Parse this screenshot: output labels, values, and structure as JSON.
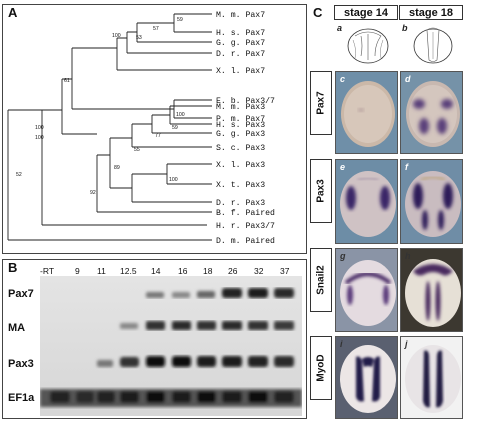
{
  "panel_a": {
    "letter": "A",
    "taxa": [
      "M. m. Pax7",
      "H. s. Pax7",
      "G. g. Pax7",
      "D. r. Pax7",
      "X. l. Pax7",
      "E. b. Pax3/7",
      "P. m. Pax7",
      "M. m. Pax3",
      "H. s. Pax3",
      "G. g. Pax3",
      "X. l. Pax3",
      "X. t. Pax3",
      "S. c. Pax3",
      "D. r. Pax3",
      "B. f. Paired",
      "H. r. Pax3/7",
      "D. m. Paired"
    ],
    "bootstraps": [
      "59",
      "57",
      "53",
      "100",
      "61",
      "100",
      "100",
      "59",
      "77",
      "55",
      "100",
      "89",
      "92",
      "100",
      "52"
    ]
  },
  "panel_b": {
    "letter": "B",
    "lanes": [
      "-RT",
      "9",
      "11",
      "12.5",
      "14",
      "16",
      "18",
      "26",
      "32",
      "37"
    ],
    "rows": [
      "Pax7",
      "MA",
      "Pax3",
      "EF1a"
    ]
  },
  "panel_c": {
    "letter": "C",
    "stages": [
      "stage 14",
      "stage 18"
    ],
    "sketch_letters": [
      "a",
      "b"
    ],
    "rows": [
      {
        "label": "Pax7",
        "left": "c",
        "right": "d"
      },
      {
        "label": "Pax3",
        "left": "e",
        "right": "f"
      },
      {
        "label": "Snail2",
        "left": "g",
        "right": "h"
      },
      {
        "label": "MyoD",
        "left": "i",
        "right": "j"
      }
    ]
  }
}
